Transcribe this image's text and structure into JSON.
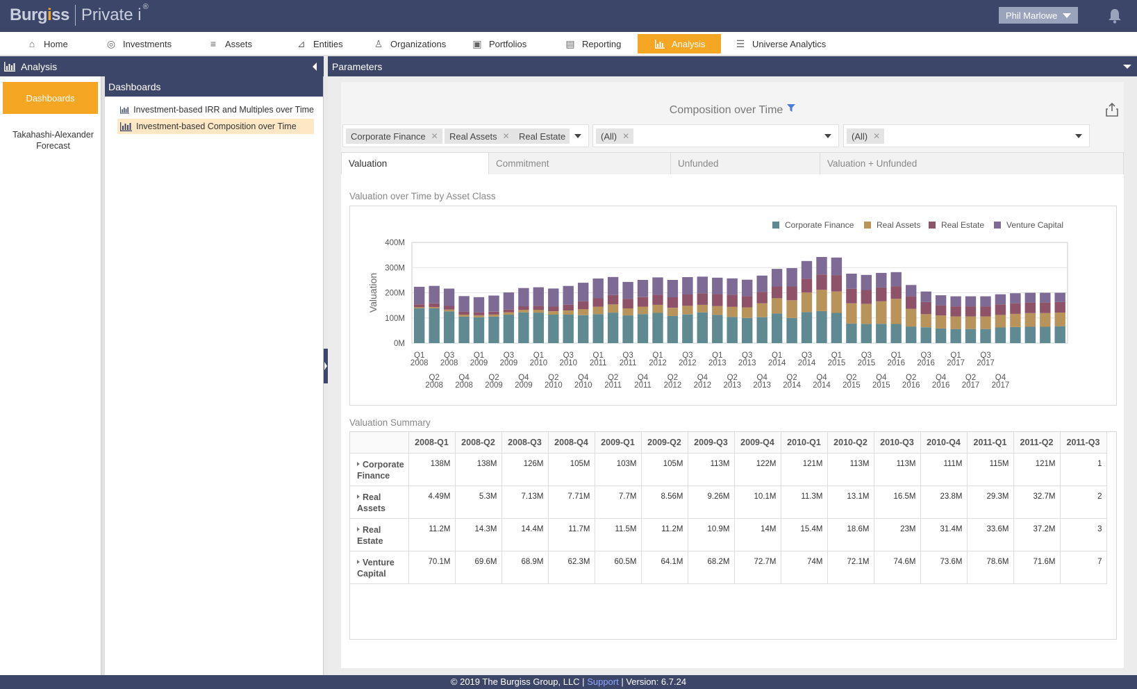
{
  "header": {
    "logo_brand_a": "Burg",
    "logo_brand_dot": "i",
    "logo_brand_b": "ss",
    "logo_product": "Private i",
    "logo_reg": "®",
    "user_name": "Phil Marlowe"
  },
  "nav": {
    "items": [
      {
        "label": "Home",
        "icon": "home-icon"
      },
      {
        "label": "Investments",
        "icon": "investments-icon"
      },
      {
        "label": "Assets",
        "icon": "assets-icon"
      },
      {
        "label": "Entities",
        "icon": "entities-icon"
      },
      {
        "label": "Organizations",
        "icon": "organizations-icon"
      },
      {
        "label": "Portfolios",
        "icon": "portfolios-icon"
      },
      {
        "label": "Reporting",
        "icon": "reporting-icon"
      },
      {
        "label": "Analysis",
        "icon": "analysis-icon",
        "active": true
      },
      {
        "label": "Universe Analytics",
        "icon": "universe-analytics-icon"
      }
    ]
  },
  "left": {
    "panel_title": "Analysis",
    "dashboards_button": "Dashboards",
    "forecast_item": "Takahashi-Alexander Forecast",
    "list_title": "Dashboards",
    "dashboards": [
      "Investment-based IRR and Multiples over Time",
      "Investment-based Composition over Time"
    ]
  },
  "params": {
    "bar_title": "Parameters",
    "page_title": "Composition over Time",
    "filters": {
      "asset_classes": [
        "Corporate Finance",
        "Real Assets",
        "Real Estate"
      ],
      "second": [
        "(All)"
      ],
      "third": [
        "(All)"
      ]
    },
    "tabs": [
      "Valuation",
      "Commitment",
      "Unfunded",
      "Valuation + Unfunded"
    ]
  },
  "chart_section_title": "Valuation over Time by Asset Class",
  "chart_data": {
    "type": "bar",
    "stacked": true,
    "ylabel": "Valuation",
    "yticks": [
      "0M",
      "100M",
      "200M",
      "300M",
      "400M"
    ],
    "ylim": [
      0,
      400
    ],
    "legend_position": "top-right",
    "x_labels_top": [
      "Q1 2008",
      "Q3 2008",
      "Q1 2009",
      "Q3 2009",
      "Q1 2010",
      "Q3 2010",
      "Q1 2011",
      "Q3 2011",
      "Q1 2012",
      "Q3 2012",
      "Q1 2013",
      "Q3 2013",
      "Q1 2014",
      "Q3 2014",
      "Q1 2015",
      "Q3 2015",
      "Q1 2016",
      "Q3 2016",
      "Q1 2017",
      "Q3 2017"
    ],
    "x_labels_bottom": [
      "Q2 2008",
      "Q4 2008",
      "Q2 2009",
      "Q4 2009",
      "Q2 2010",
      "Q4 2010",
      "Q2 2011",
      "Q4 2011",
      "Q2 2012",
      "Q4 2012",
      "Q2 2013",
      "Q4 2013",
      "Q2 2014",
      "Q4 2014",
      "Q2 2015",
      "Q4 2015",
      "Q2 2016",
      "Q4 2016",
      "Q2 2017",
      "Q4 2017"
    ],
    "series": [
      {
        "name": "Corporate Finance",
        "color": "#5f8a92",
        "values": [
          138,
          138,
          126,
          105,
          103,
          105,
          113,
          122,
          121,
          113,
          113,
          111,
          115,
          121,
          110,
          115,
          120,
          108,
          114,
          122,
          112,
          104,
          100,
          103,
          118,
          100,
          123,
          127,
          120,
          78,
          76,
          76,
          76,
          66,
          63,
          58,
          56,
          56,
          56,
          62,
          64,
          65,
          65,
          67
        ]
      },
      {
        "name": "Real Assets",
        "color": "#b8935a",
        "values": [
          4.49,
          5.3,
          7.13,
          7.71,
          7.7,
          8.56,
          9.26,
          10.1,
          11.3,
          13.1,
          16.5,
          23.8,
          29.3,
          32.7,
          28,
          30,
          32,
          32,
          34,
          30,
          35,
          40,
          42,
          55,
          60,
          70,
          78,
          85,
          85,
          80,
          80,
          90,
          100,
          70,
          52,
          52,
          50,
          50,
          50,
          50,
          52,
          54,
          54,
          54
        ]
      },
      {
        "name": "Real Estate",
        "color": "#8e5368",
        "values": [
          11.2,
          14.3,
          14.4,
          11.7,
          11.5,
          11.2,
          10.9,
          14,
          15.4,
          18.6,
          23,
          31.4,
          33.6,
          37.2,
          38,
          38,
          40,
          42,
          45,
          45,
          48,
          48,
          45,
          45,
          47,
          55,
          55,
          60,
          65,
          58,
          55,
          55,
          50,
          50,
          48,
          40,
          40,
          40,
          40,
          42,
          42,
          42,
          42,
          42
        ]
      },
      {
        "name": "Venture Capital",
        "color": "#7d6b96",
        "values": [
          70.1,
          69.6,
          68.9,
          62.3,
          60.5,
          64.1,
          68.2,
          72.7,
          74,
          72.1,
          74.6,
          73.6,
          78.6,
          71.6,
          67,
          68,
          69,
          69,
          69,
          67,
          65,
          65,
          65,
          65,
          70,
          73,
          70,
          70,
          70,
          60,
          60,
          58,
          56,
          45,
          42,
          40,
          40,
          40,
          40,
          40,
          40,
          39,
          39,
          37
        ]
      }
    ]
  },
  "table": {
    "title": "Valuation Summary",
    "columns": [
      "2008-Q1",
      "2008-Q2",
      "2008-Q3",
      "2008-Q4",
      "2009-Q1",
      "2009-Q2",
      "2009-Q3",
      "2009-Q4",
      "2010-Q1",
      "2010-Q2",
      "2010-Q3",
      "2010-Q4",
      "2011-Q1",
      "2011-Q2",
      "2011-Q3"
    ],
    "rows": [
      {
        "label": "Corporate Finance",
        "values": [
          "138M",
          "138M",
          "126M",
          "105M",
          "103M",
          "105M",
          "113M",
          "122M",
          "121M",
          "113M",
          "113M",
          "111M",
          "115M",
          "121M",
          "1"
        ]
      },
      {
        "label": "Real Assets",
        "values": [
          "4.49M",
          "5.3M",
          "7.13M",
          "7.71M",
          "7.7M",
          "8.56M",
          "9.26M",
          "10.1M",
          "11.3M",
          "13.1M",
          "16.5M",
          "23.8M",
          "29.3M",
          "32.7M",
          "2"
        ]
      },
      {
        "label": "Real Estate",
        "values": [
          "11.2M",
          "14.3M",
          "14.4M",
          "11.7M",
          "11.5M",
          "11.2M",
          "10.9M",
          "14M",
          "15.4M",
          "18.6M",
          "23M",
          "31.4M",
          "33.6M",
          "37.2M",
          "3"
        ]
      },
      {
        "label": "Venture Capital",
        "values": [
          "70.1M",
          "69.6M",
          "68.9M",
          "62.3M",
          "60.5M",
          "64.1M",
          "68.2M",
          "72.7M",
          "74M",
          "72.1M",
          "74.6M",
          "73.6M",
          "78.6M",
          "71.6M",
          "7"
        ]
      }
    ]
  },
  "footer": {
    "copyright": "© 2019 The Burgiss Group, LLC |",
    "support": "Support",
    "version": "| Version: 6.7.24"
  }
}
